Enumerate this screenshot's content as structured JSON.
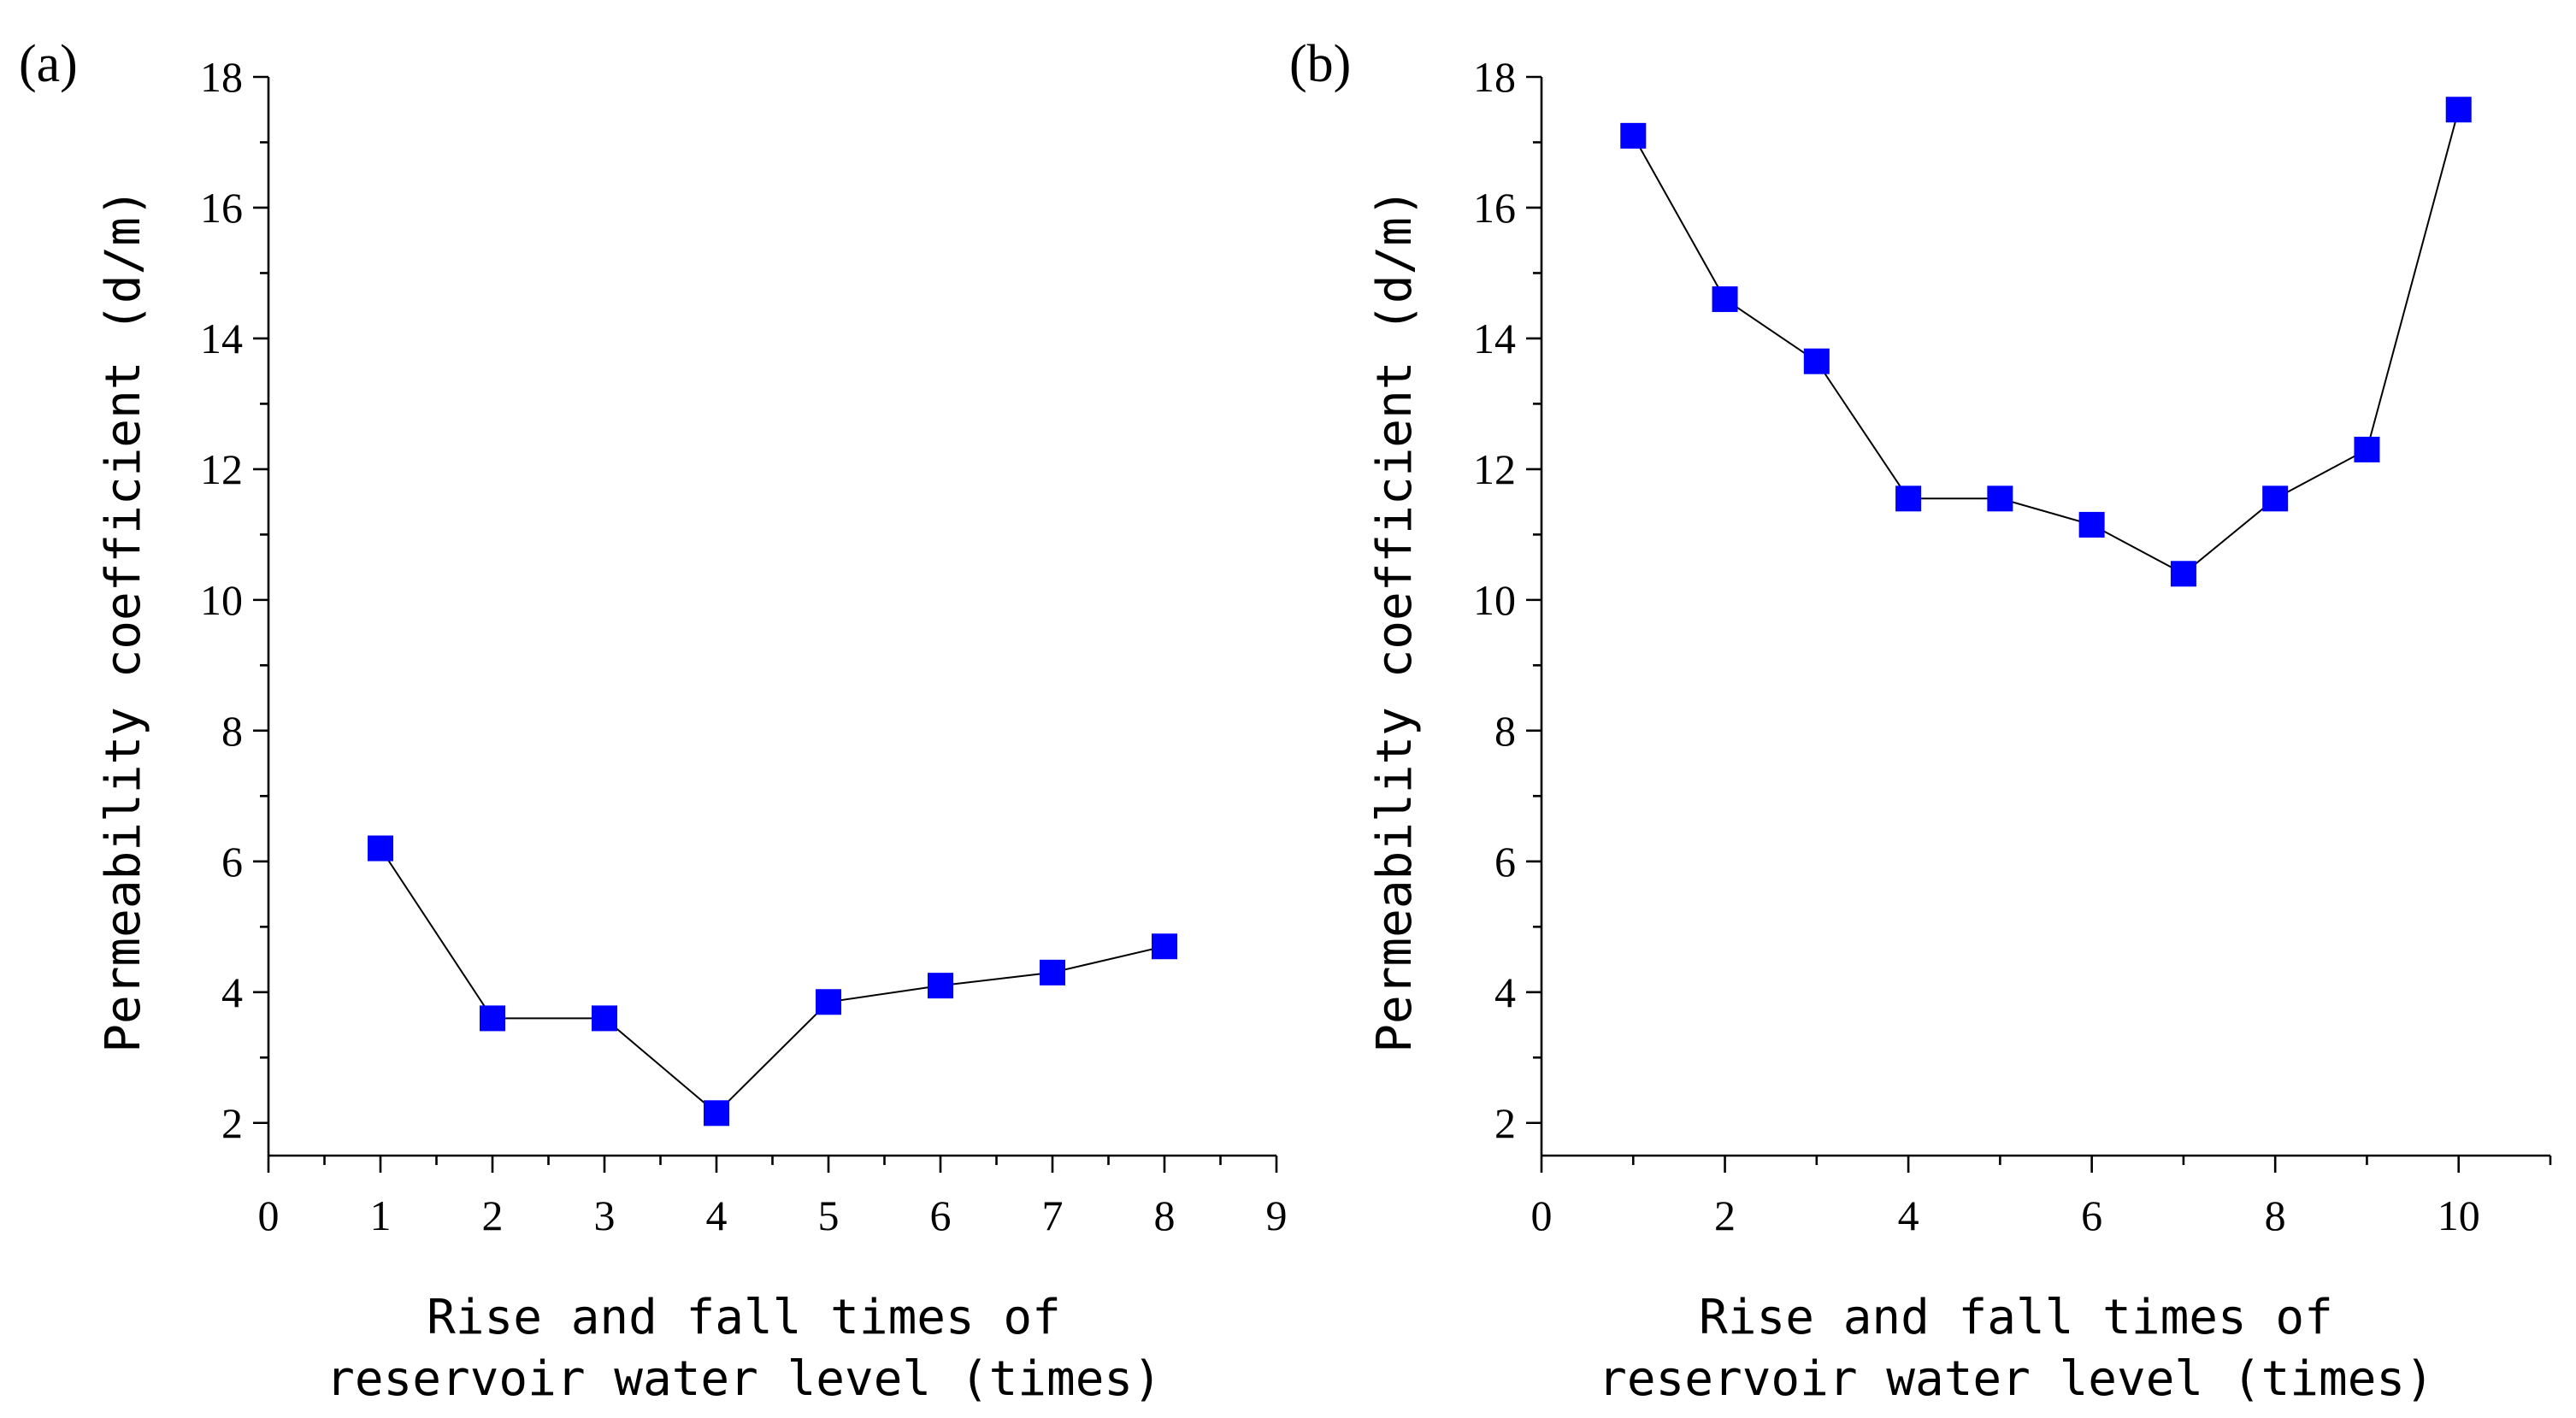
{
  "chart_data": [
    {
      "type": "line",
      "panel_label": "(a)",
      "title": "",
      "xlabel": [
        "Rise and fall times of",
        "reservoir water level (times)"
      ],
      "ylabel": "Permeability coefficient (d/m)",
      "xlim": [
        0,
        9
      ],
      "ylim": [
        1.5,
        18
      ],
      "xticks": [
        0,
        1,
        2,
        3,
        4,
        5,
        6,
        7,
        8,
        9
      ],
      "xminor": [],
      "yticks": [
        2,
        4,
        6,
        8,
        10,
        12,
        14,
        16,
        18
      ],
      "series": [
        {
          "name": "Permeability coefficient",
          "color": "#0000ff",
          "x": [
            1,
            2,
            3,
            4,
            5,
            6,
            7,
            8
          ],
          "y": [
            6.2,
            3.6,
            3.6,
            2.15,
            3.85,
            4.1,
            4.3,
            4.7
          ]
        }
      ]
    },
    {
      "type": "line",
      "panel_label": "(b)",
      "title": "",
      "xlabel": [
        "Rise and fall times of",
        "reservoir water level (times)"
      ],
      "ylabel": "Permeability coefficient (d/m)",
      "xlim": [
        0,
        11
      ],
      "ylim": [
        1.5,
        18
      ],
      "xticks": [
        0,
        2,
        4,
        6,
        8,
        10
      ],
      "xminor": [
        1,
        3,
        5,
        7,
        9,
        11
      ],
      "yticks": [
        2,
        4,
        6,
        8,
        10,
        12,
        14,
        16,
        18
      ],
      "series": [
        {
          "name": "Permeability coefficient",
          "color": "#0000ff",
          "x": [
            1,
            2,
            3,
            4,
            5,
            6,
            7,
            8,
            9,
            10
          ],
          "y": [
            17.1,
            14.6,
            13.65,
            11.55,
            11.55,
            11.15,
            10.4,
            11.55,
            12.3,
            17.5
          ]
        }
      ]
    }
  ]
}
